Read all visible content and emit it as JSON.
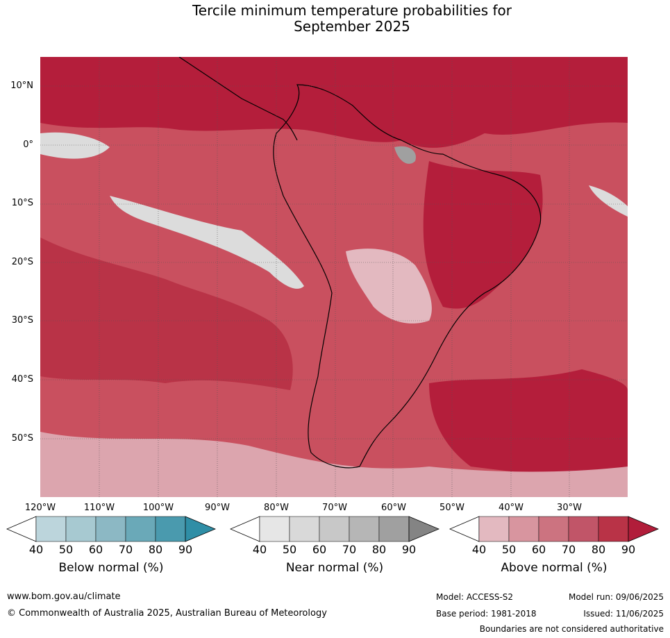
{
  "title_line1": "Tercile minimum temperature probabilities for",
  "title_line2": "September 2025",
  "lat_labels": [
    "10°N",
    "0°",
    "10°S",
    "20°S",
    "30°S",
    "40°S",
    "50°S"
  ],
  "lon_labels": [
    "120°W",
    "110°W",
    "100°W",
    "90°W",
    "80°W",
    "70°W",
    "60°W",
    "50°W",
    "40°W",
    "30°W"
  ],
  "colorbars": [
    {
      "title": "Below normal (%)",
      "ticks": [
        "40",
        "50",
        "60",
        "70",
        "80",
        "90"
      ],
      "colors": [
        "#ffffff",
        "#bcd5dc",
        "#a7c9d1",
        "#8cb8c4",
        "#6aa9b8",
        "#4a9aae",
        "#2f8ea6"
      ]
    },
    {
      "title": "Near normal (%)",
      "ticks": [
        "40",
        "50",
        "60",
        "70",
        "80",
        "90"
      ],
      "colors": [
        "#ffffff",
        "#e6e6e6",
        "#d9d9d9",
        "#c8c8c8",
        "#b6b6b6",
        "#a0a0a0",
        "#848484"
      ]
    },
    {
      "title": "Above normal (%)",
      "ticks": [
        "40",
        "50",
        "60",
        "70",
        "80",
        "90"
      ],
      "colors": [
        "#ffffff",
        "#e3b9c0",
        "#d8959f",
        "#cc7380",
        "#c15568",
        "#b93347",
        "#b11d3a"
      ]
    }
  ],
  "footer": {
    "website": "www.bom.gov.au/climate",
    "copyright": "© Commonwealth of Australia 2025, Australian Bureau of Meteorology",
    "model": "Model: ACCESS-S2",
    "base_period": "Base period: 1981-2018",
    "model_run": "Model run: 09/06/2025",
    "issued": "Issued: 11/06/2025",
    "disclaimer": "Boundaries are not considered authoritative"
  }
}
